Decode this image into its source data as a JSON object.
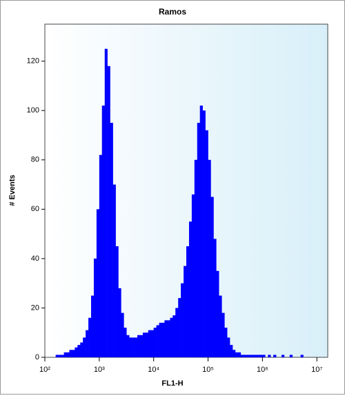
{
  "chart_data": {
    "type": "histogram",
    "title": "Ramos",
    "x_label": "FL1-H",
    "y_label": "# Events",
    "color": "#0000ff",
    "log_x": true,
    "bins": [
      100,
      112,
      126,
      141,
      158,
      178,
      200,
      224,
      251,
      282,
      316,
      355,
      398,
      447,
      501,
      562,
      631,
      708,
      794,
      891,
      1000,
      1120,
      1260,
      1410,
      1580,
      1780,
      2000,
      2240,
      2510,
      2820,
      3160,
      3550,
      3980,
      4470,
      5010,
      5620,
      6310,
      7080,
      7940,
      8910,
      10000,
      11200,
      12600,
      14100,
      15800,
      17800,
      20000,
      22400,
      25100,
      28200,
      31600,
      35500,
      39800,
      44700,
      50100,
      56200,
      63100,
      70800,
      79400,
      89100,
      100000,
      112000,
      126000,
      141000,
      158000,
      178000,
      200000,
      224000,
      251000,
      282000,
      316000,
      355000,
      398000,
      447000,
      501000,
      562000,
      631000,
      708000,
      794000,
      891000,
      1000000,
      1120000,
      1260000,
      1410000,
      1580000,
      1780000,
      2000000,
      2240000,
      2510000,
      2820000,
      3160000,
      3550000,
      3980000,
      4470000,
      5010000,
      5620000,
      6310000,
      7080000,
      7940000,
      8910000,
      10000000
    ],
    "counts": [
      0,
      0,
      0,
      0,
      1,
      1,
      1,
      2,
      2,
      3,
      3,
      4,
      5,
      6,
      8,
      11,
      16,
      25,
      40,
      60,
      82,
      102,
      125,
      118,
      95,
      70,
      45,
      28,
      18,
      12,
      9,
      8,
      8,
      8,
      9,
      9,
      10,
      10,
      11,
      11,
      12,
      13,
      14,
      14,
      15,
      15,
      16,
      17,
      20,
      24,
      30,
      37,
      45,
      55,
      66,
      80,
      95,
      102,
      100,
      92,
      80,
      65,
      48,
      35,
      25,
      18,
      12,
      8,
      5,
      3,
      2,
      2,
      1,
      1,
      1,
      1,
      1,
      1,
      1,
      1,
      1,
      0,
      1,
      0,
      1,
      0,
      0,
      1,
      0,
      0,
      1,
      0,
      0,
      0,
      1,
      0,
      0,
      0,
      0,
      0
    ],
    "xlim": [
      100,
      15850000
    ],
    "ylim": [
      0,
      135
    ],
    "xticks": [
      {
        "value": 100,
        "label": "10²"
      },
      {
        "value": 1000,
        "label": "10³"
      },
      {
        "value": 10000,
        "label": "10⁴"
      },
      {
        "value": 100000,
        "label": "10⁵"
      },
      {
        "value": 1000000,
        "label": "10⁶"
      },
      {
        "value": 10000000,
        "label": "10⁷"
      }
    ],
    "yticks": [
      0,
      20,
      40,
      60,
      80,
      100,
      120
    ]
  }
}
